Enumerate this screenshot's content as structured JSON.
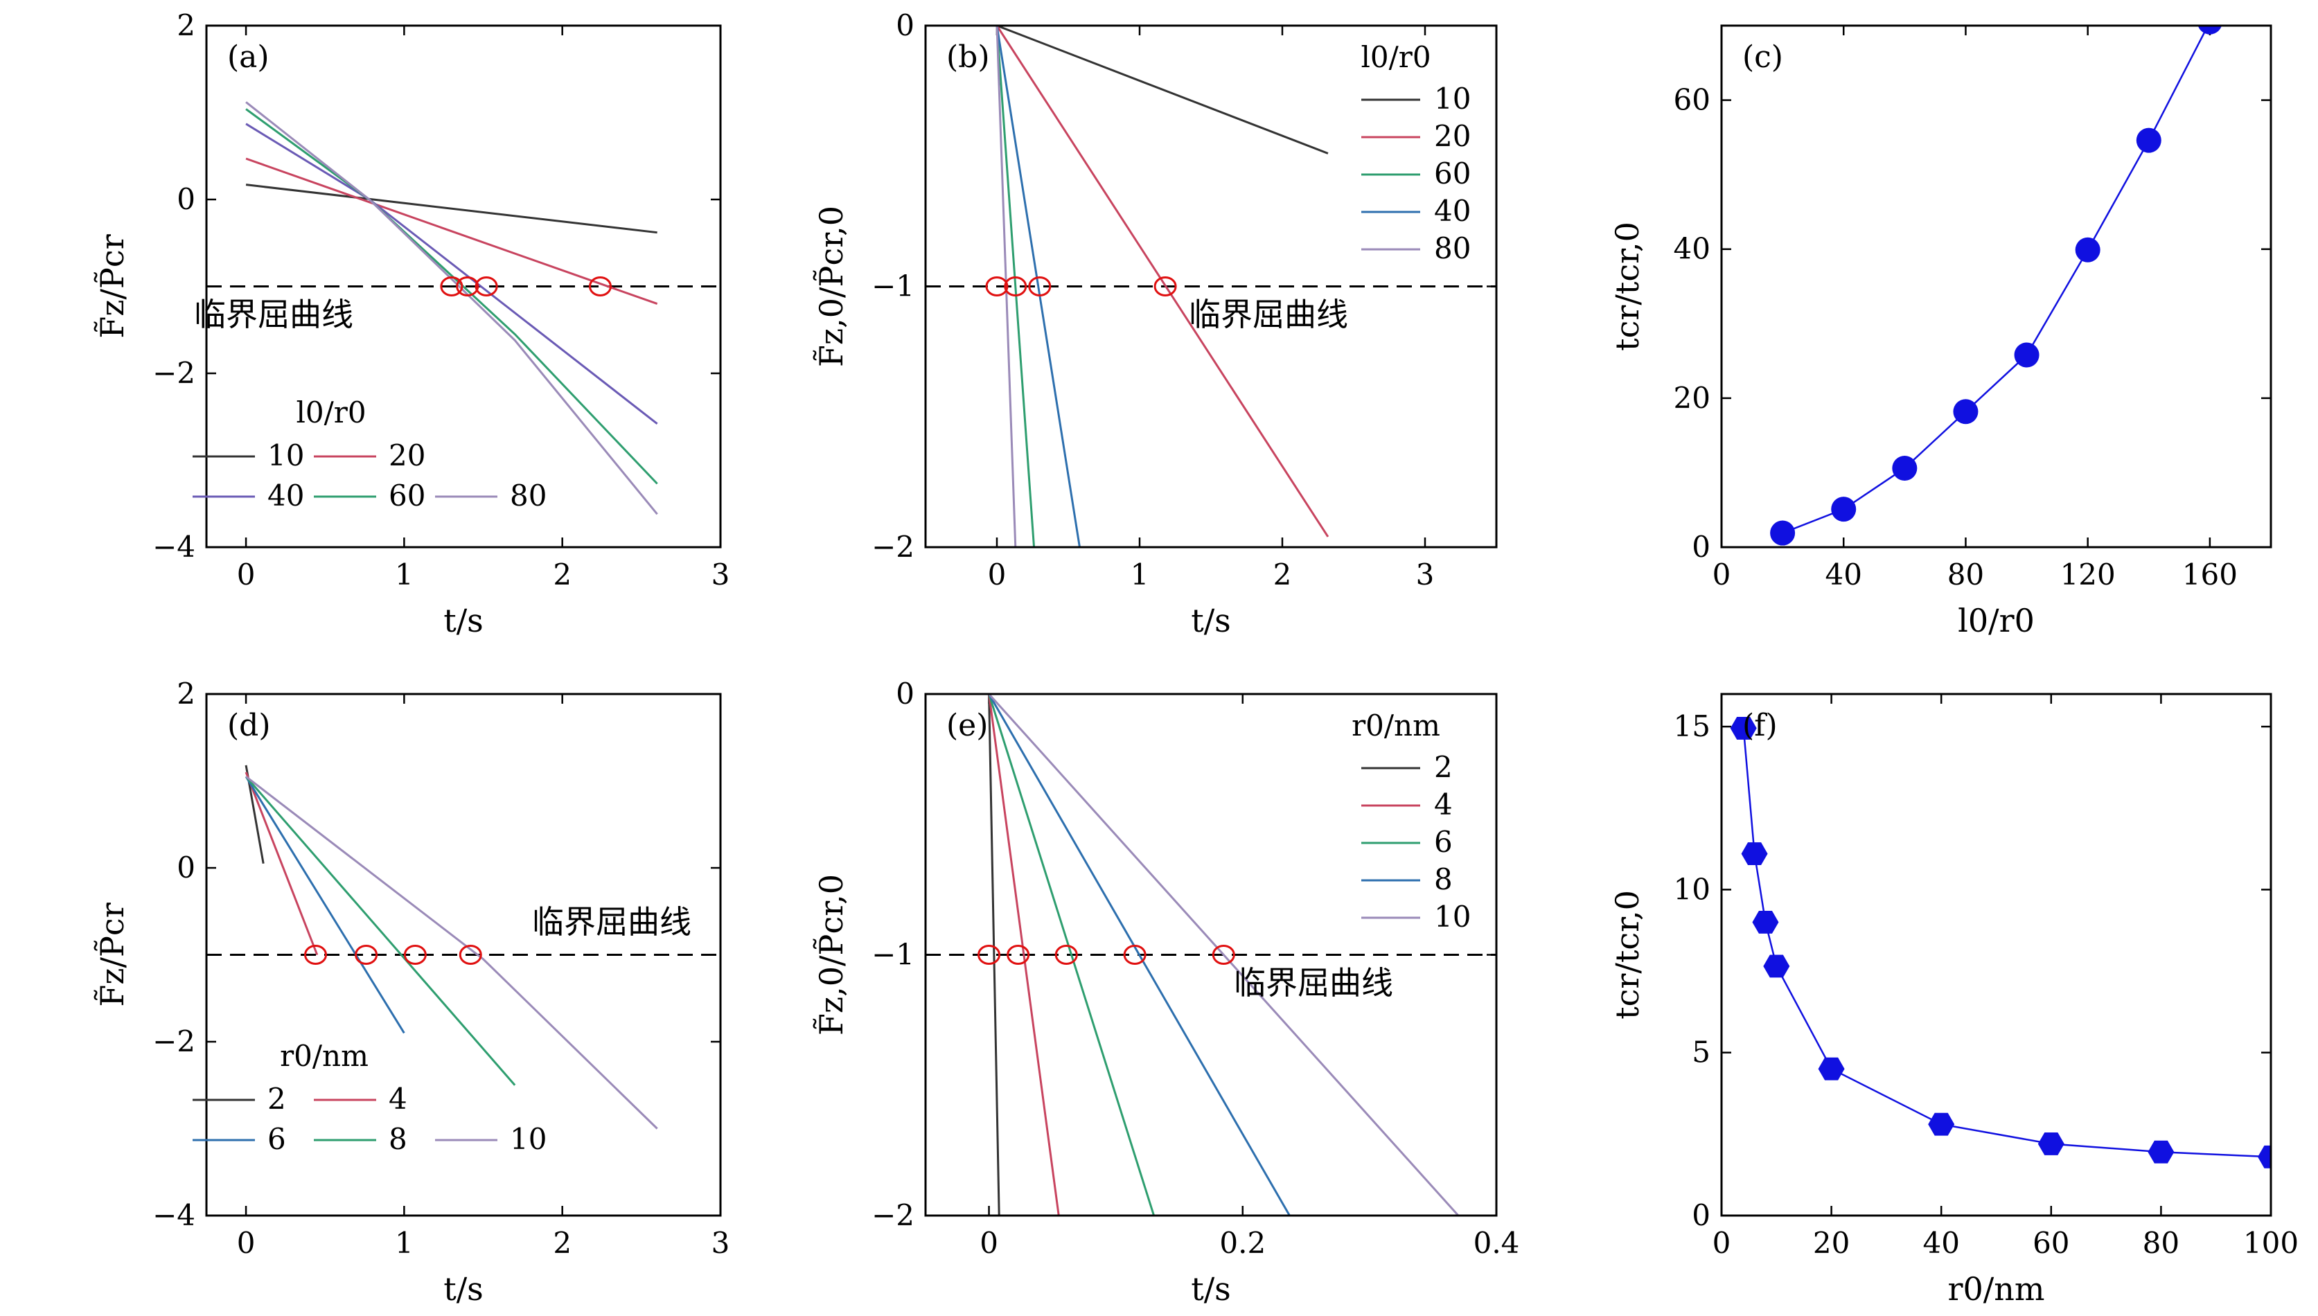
{
  "colors": {
    "10": "#333333",
    "20": "#c8445f",
    "40": "#2d6fae",
    "60": "#2e9e6f",
    "80": "#9a8ab8",
    "40a": "#6a5ab5",
    "marker": "#e01010",
    "dot": "#1010e0"
  },
  "panels": {
    "a": {
      "label": "(a)",
      "xlabel": "t/s",
      "ylabel": "F̃z/P̃cr",
      "annotation": "临界屈曲线",
      "legend_title": "l0/r0",
      "xticks": [
        "0",
        "1",
        "2",
        "3"
      ],
      "yticks": [
        "2",
        "0",
        "−2",
        "−4"
      ]
    },
    "b": {
      "label": "(b)",
      "xlabel": "t/s",
      "ylabel": "F̃z,0/P̃cr,0",
      "annotation": "临界屈曲线",
      "legend_title": "l0/r0",
      "xticks": [
        "0",
        "1",
        "2",
        "3"
      ],
      "yticks": [
        "0",
        "−1",
        "−2"
      ]
    },
    "c": {
      "label": "(c)",
      "xlabel": "l0/r0",
      "ylabel": "tcr/tcr,0",
      "xticks": [
        "0",
        "40",
        "80",
        "120",
        "160"
      ],
      "yticks": [
        "0",
        "20",
        "40",
        "60"
      ]
    },
    "d": {
      "label": "(d)",
      "xlabel": "t/s",
      "ylabel": "F̃z/P̃cr",
      "annotation": "临界屈曲线",
      "legend_title": "r0/nm",
      "xticks": [
        "0",
        "1",
        "2",
        "3"
      ],
      "yticks": [
        "2",
        "0",
        "−2",
        "−4"
      ]
    },
    "e": {
      "label": "(e)",
      "xlabel": "t/s",
      "ylabel": "F̃z,0/P̃cr,0",
      "annotation": "临界屈曲线",
      "legend_title": "r0/nm",
      "xticks": [
        "0",
        "0.2",
        "0.4"
      ],
      "yticks": [
        "0",
        "−1",
        "−2"
      ]
    },
    "f": {
      "label": "(f)",
      "xlabel": "r0/nm",
      "ylabel": "tcr/tcr,0",
      "xticks": [
        "0",
        "20",
        "40",
        "60",
        "80",
        "100"
      ],
      "yticks": [
        "0",
        "5",
        "10",
        "15"
      ]
    }
  },
  "chart_data": [
    {
      "id": "a",
      "type": "line",
      "xlabel": "t/s",
      "ylabel": "F̃z/P̃cr",
      "xlim": [
        -0.25,
        3
      ],
      "ylim": [
        -4,
        2
      ],
      "legend_title": "l0/r0",
      "legend_position": "bottom-left",
      "threshold": -1,
      "threshold_label": "临界屈曲线",
      "series": [
        {
          "name": "10",
          "x": [
            0,
            2.6
          ],
          "y": [
            0.17,
            -0.38
          ]
        },
        {
          "name": "20",
          "x": [
            0,
            2.6
          ],
          "y": [
            0.47,
            -1.2
          ]
        },
        {
          "name": "40",
          "x": [
            0,
            0.78,
            2.6
          ],
          "y": [
            0.87,
            0,
            -2.58
          ]
        },
        {
          "name": "60",
          "x": [
            0,
            0.78,
            1.7,
            2.6
          ],
          "y": [
            1.04,
            0,
            -1.55,
            -3.27
          ]
        },
        {
          "name": "80",
          "x": [
            0,
            0.78,
            1.7,
            2.6
          ],
          "y": [
            1.12,
            0,
            -1.62,
            -3.62
          ]
        }
      ],
      "crossings": [
        {
          "x": 1.3,
          "y": -1
        },
        {
          "x": 1.4,
          "y": -1
        },
        {
          "x": 1.52,
          "y": -1
        },
        {
          "x": 2.24,
          "y": -1
        }
      ]
    },
    {
      "id": "b",
      "type": "line",
      "xlabel": "t/s",
      "ylabel": "F̃z,0/P̃cr,0",
      "xlim": [
        -0.5,
        3.5
      ],
      "ylim": [
        -2,
        0
      ],
      "legend_title": "l0/r0",
      "legend_position": "top-right",
      "threshold": -1,
      "threshold_label": "临界屈曲线",
      "series": [
        {
          "name": "10",
          "x": [
            0,
            2.32
          ],
          "y": [
            0,
            -0.49
          ]
        },
        {
          "name": "20",
          "x": [
            0,
            2.32
          ],
          "y": [
            0,
            -1.96
          ]
        },
        {
          "name": "60",
          "x": [
            0,
            0.26
          ],
          "y": [
            0,
            -2
          ]
        },
        {
          "name": "40",
          "x": [
            0,
            0.58
          ],
          "y": [
            0,
            -2
          ]
        },
        {
          "name": "80",
          "x": [
            0,
            0.13
          ],
          "y": [
            0,
            -2
          ]
        }
      ],
      "crossings": [
        {
          "x": 0.0,
          "y": -1
        },
        {
          "x": 0.13,
          "y": -1
        },
        {
          "x": 0.3,
          "y": -1
        },
        {
          "x": 1.18,
          "y": -1
        }
      ]
    },
    {
      "id": "c",
      "type": "scatter",
      "xlabel": "l0/r0",
      "ylabel": "tcr/tcr,0",
      "xlim": [
        0,
        180
      ],
      "ylim": [
        0,
        70
      ],
      "x": [
        20,
        40,
        60,
        80,
        100,
        120,
        140,
        160
      ],
      "y": [
        1.9,
        5.1,
        10.6,
        18.2,
        25.8,
        39.9,
        54.6,
        70.5
      ]
    },
    {
      "id": "d",
      "type": "line",
      "xlabel": "t/s",
      "ylabel": "F̃z/P̃cr",
      "xlim": [
        -0.25,
        3
      ],
      "ylim": [
        -4,
        2
      ],
      "legend_title": "r0/nm",
      "legend_position": "bottom-left",
      "threshold": -1,
      "threshold_label": "临界屈曲线",
      "series": [
        {
          "name": "2",
          "x": [
            0,
            0.11
          ],
          "y": [
            1.18,
            0.05
          ]
        },
        {
          "name": "4",
          "x": [
            0,
            0.45
          ],
          "y": [
            1.1,
            -1
          ]
        },
        {
          "name": "6",
          "x": [
            0,
            1.0
          ],
          "y": [
            1.05,
            -1.9
          ]
        },
        {
          "name": "8",
          "x": [
            0,
            1.7
          ],
          "y": [
            1.05,
            -2.5
          ]
        },
        {
          "name": "10",
          "x": [
            0,
            1.5,
            2.6
          ],
          "y": [
            1.05,
            -1.05,
            -3.0
          ]
        }
      ],
      "crossings": [
        {
          "x": 0.44,
          "y": -1
        },
        {
          "x": 0.76,
          "y": -1
        },
        {
          "x": 1.07,
          "y": -1
        },
        {
          "x": 1.42,
          "y": -1
        }
      ]
    },
    {
      "id": "e",
      "type": "line",
      "xlabel": "t/s",
      "ylabel": "F̃z,0/P̃cr,0",
      "xlim": [
        -0.05,
        0.4
      ],
      "ylim": [
        -2,
        0
      ],
      "legend_title": "r0/nm",
      "legend_position": "top-right",
      "threshold": -1,
      "threshold_label": "临界屈曲线",
      "series": [
        {
          "name": "2",
          "x": [
            0,
            0.008
          ],
          "y": [
            0,
            -2
          ]
        },
        {
          "name": "4",
          "x": [
            0,
            0.055
          ],
          "y": [
            0,
            -2
          ]
        },
        {
          "name": "6",
          "x": [
            0,
            0.13
          ],
          "y": [
            0,
            -2
          ]
        },
        {
          "name": "8",
          "x": [
            0,
            0.237
          ],
          "y": [
            0,
            -2
          ]
        },
        {
          "name": "10",
          "x": [
            0,
            0.37
          ],
          "y": [
            0,
            -2
          ]
        }
      ],
      "crossings": [
        {
          "x": 0.0,
          "y": -1
        },
        {
          "x": 0.023,
          "y": -1
        },
        {
          "x": 0.061,
          "y": -1
        },
        {
          "x": 0.115,
          "y": -1
        },
        {
          "x": 0.185,
          "y": -1
        }
      ]
    },
    {
      "id": "f",
      "type": "scatter",
      "xlabel": "r0/nm",
      "ylabel": "tcr/tcr,0",
      "xlim": [
        0,
        100
      ],
      "ylim": [
        0,
        16
      ],
      "x": [
        4,
        6,
        8,
        10,
        20,
        40,
        60,
        80,
        100
      ],
      "y": [
        14.95,
        11.1,
        9.0,
        7.65,
        4.5,
        2.8,
        2.2,
        1.95,
        1.8
      ]
    }
  ]
}
